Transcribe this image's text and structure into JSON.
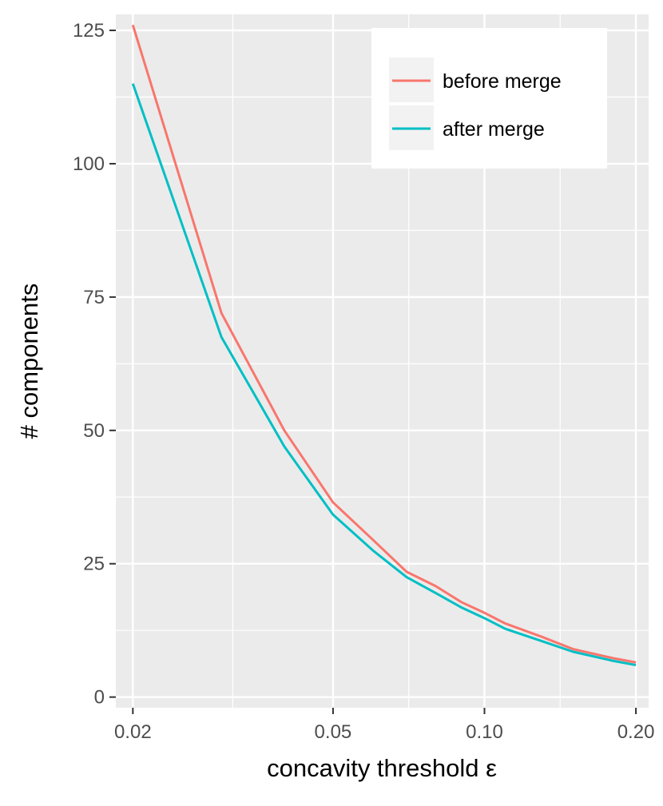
{
  "chart_data": {
    "type": "line",
    "title": "",
    "xlabel": "concavity threshold ε",
    "ylabel": "# components",
    "x_scale": "log10",
    "xlim": [
      0.0185,
      0.212
    ],
    "ylim": [
      -2,
      128
    ],
    "x_ticks": [
      {
        "value": 0.02,
        "label": "0.02"
      },
      {
        "value": 0.05,
        "label": "0.05"
      },
      {
        "value": 0.1,
        "label": "0.10"
      },
      {
        "value": 0.2,
        "label": "0.20"
      }
    ],
    "x_minor_ticks": [
      0.0316,
      0.0707,
      0.1414
    ],
    "y_ticks": [
      {
        "value": 0,
        "label": "0"
      },
      {
        "value": 25,
        "label": "25"
      },
      {
        "value": 50,
        "label": "50"
      },
      {
        "value": 75,
        "label": "75"
      },
      {
        "value": 100,
        "label": "100"
      },
      {
        "value": 125,
        "label": "125"
      }
    ],
    "y_minor_ticks": [
      12.5,
      37.5,
      62.5,
      87.5,
      112.5
    ],
    "x": [
      0.02,
      0.03,
      0.04,
      0.05,
      0.06,
      0.07,
      0.08,
      0.09,
      0.1,
      0.11,
      0.13,
      0.15,
      0.18,
      0.2
    ],
    "series": [
      {
        "name": "before merge",
        "color": "#F8766D",
        "values": [
          126,
          72,
          50,
          36.5,
          29.5,
          23.5,
          20.8,
          17.8,
          15.8,
          13.8,
          11.3,
          9.0,
          7.3,
          6.5
        ]
      },
      {
        "name": "after merge",
        "color": "#00BFC4",
        "values": [
          115,
          67.5,
          47,
          34.2,
          27.5,
          22.5,
          19.5,
          16.8,
          14.8,
          12.8,
          10.5,
          8.5,
          6.8,
          6.0
        ]
      }
    ],
    "grid": true,
    "panel_background": "#EBEBEB",
    "legend": {
      "position": "top-right",
      "entries": [
        "before merge",
        "after merge"
      ]
    }
  }
}
